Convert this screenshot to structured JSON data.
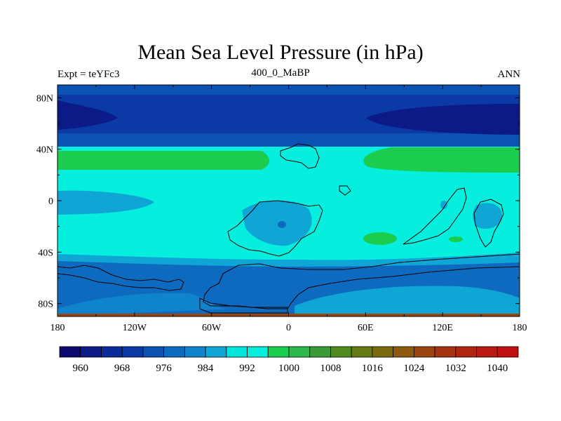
{
  "title": "Mean Sea Level Pressure (in hPa)",
  "left_subtitle": "Expt = teYFc3",
  "center_subtitle": "400_0_MaBP",
  "right_subtitle": "ANN",
  "x_ticks": [
    "180",
    "120W",
    "60W",
    "0",
    "60E",
    "120E",
    "180"
  ],
  "y_ticks": [
    "80N",
    "40N",
    "0",
    "40S",
    "80S"
  ],
  "colorbar": {
    "labels": [
      "960",
      "968",
      "976",
      "984",
      "992",
      "1000",
      "1008",
      "1016",
      "1024",
      "1032",
      "1040"
    ],
    "colors": [
      "#0d0a6e",
      "#0b1a86",
      "#0a2b99",
      "#0b3aa6",
      "#0c52b2",
      "#0e6abf",
      "#0f83cc",
      "#0fa6d6",
      "#00e6dc",
      "#06eedd",
      "#1ccc4e",
      "#2cb84a",
      "#3a9a36",
      "#4e8a1e",
      "#647a14",
      "#7a6a10",
      "#8e5a10",
      "#9a4410",
      "#a63410",
      "#b02410",
      "#b81a12",
      "#c01010"
    ]
  },
  "chart_data": {
    "type": "heatmap",
    "title": "Mean Sea Level Pressure (in hPa)",
    "variable": "Mean Sea Level Pressure",
    "units": "hPa",
    "experiment": "teYFc3",
    "time": "400_0_MaBP",
    "period": "ANN",
    "lon_range": [
      -180,
      180
    ],
    "lat_range": [
      -90,
      90
    ],
    "contour_levels": [
      956,
      960,
      964,
      968,
      972,
      976,
      980,
      984,
      988,
      992,
      996,
      1000,
      1004,
      1008,
      1012,
      1016,
      1020,
      1024,
      1028,
      1032,
      1036,
      1040,
      1044
    ]
  }
}
